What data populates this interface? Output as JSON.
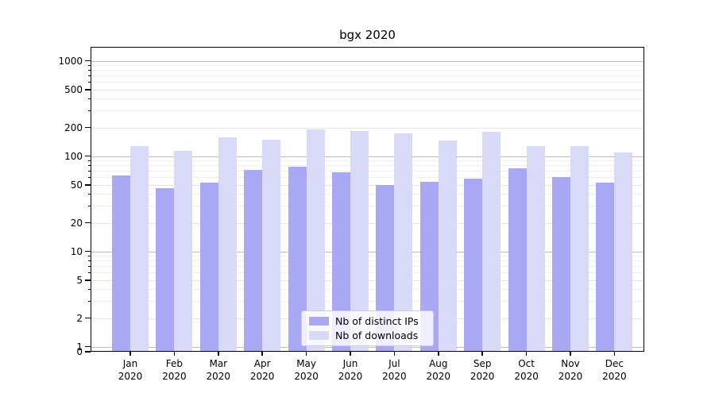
{
  "chart_data": {
    "type": "bar",
    "title": "bgx 2020",
    "categories": [
      "Jan 2020",
      "Feb 2020",
      "Mar 2020",
      "Apr 2020",
      "May 2020",
      "Jun 2020",
      "Jul 2020",
      "Aug 2020",
      "Sep 2020",
      "Oct 2020",
      "Nov 2020",
      "Dec 2020"
    ],
    "months": [
      "Jan",
      "Feb",
      "Mar",
      "Apr",
      "May",
      "Jun",
      "Jul",
      "Aug",
      "Sep",
      "Oct",
      "Nov",
      "Dec"
    ],
    "year_label": "2020",
    "series": [
      {
        "name": "Nb of distinct IPs",
        "color": "#a8a8f5",
        "values": [
          63,
          46,
          53,
          72,
          78,
          68,
          50,
          54,
          58,
          74,
          60,
          53
        ]
      },
      {
        "name": "Nb of downloads",
        "color": "#d9d9f8",
        "values": [
          127,
          114,
          158,
          150,
          190,
          184,
          172,
          147,
          180,
          128,
          127,
          110
        ]
      }
    ],
    "xlabel": "",
    "ylabel": "",
    "yscale": "symlog",
    "yticks": [
      0,
      1,
      2,
      5,
      10,
      20,
      50,
      100,
      200,
      500,
      1000
    ],
    "ylim": [
      0,
      1400
    ],
    "grid": true,
    "legend_position": "inside-bottom-center"
  },
  "colors": {
    "background": "#ffffff",
    "axis": "#000000",
    "grid_major": "#bcbcbc",
    "grid_minor": "#f0f0f0",
    "series_ips": "#a8a8f5",
    "series_downloads": "#d9d9f8"
  }
}
